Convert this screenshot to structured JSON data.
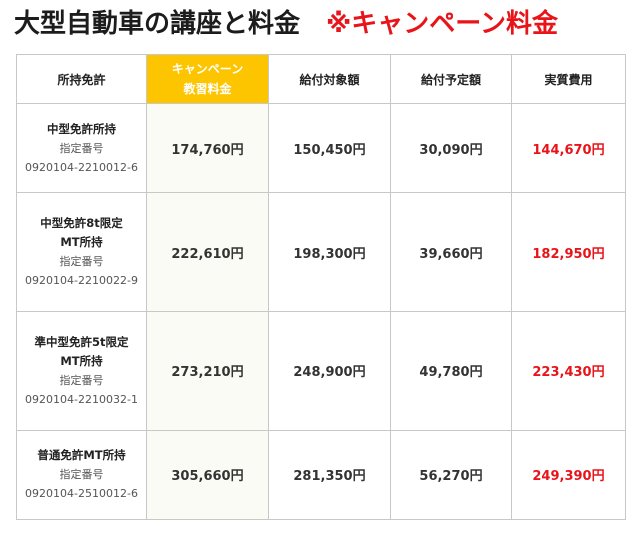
{
  "title": {
    "main": "大型自動車の講座と料金",
    "campaign": "※キャンペーン料金"
  },
  "headers": {
    "license": "所持免許",
    "fee_line1": "キャンペーン",
    "fee_line2": "教習料金",
    "subsidy": "給付対象額",
    "benefit": "給付予定額",
    "actual": "実質費用"
  },
  "rows": [
    {
      "license_line1": "中型免許所持",
      "license_line2": "",
      "designation_label": "指定番号",
      "designation_number": "0920104-2210012-6",
      "fee": "174,760円",
      "subsidy": "150,450円",
      "benefit": "30,090円",
      "actual": "144,670円"
    },
    {
      "license_line1": "中型免許8t限定",
      "license_line2": "MT所持",
      "designation_label": "指定番号",
      "designation_number": "0920104-2210022-9",
      "fee": "222,610円",
      "subsidy": "198,300円",
      "benefit": "39,660円",
      "actual": "182,950円"
    },
    {
      "license_line1": "準中型免許5t限定",
      "license_line2": "MT所持",
      "designation_label": "指定番号",
      "designation_number": "0920104-2210032-1",
      "fee": "273,210円",
      "subsidy": "248,900円",
      "benefit": "49,780円",
      "actual": "223,430円"
    },
    {
      "license_line1": "普通免許MT所持",
      "license_line2": "",
      "designation_label": "指定番号",
      "designation_number": "0920104-2510012-6",
      "fee": "305,660円",
      "subsidy": "281,350円",
      "benefit": "56,270円",
      "actual": "249,390円"
    }
  ],
  "colors": {
    "highlight": "#fdc400",
    "campaign_red": "#e8141a"
  }
}
